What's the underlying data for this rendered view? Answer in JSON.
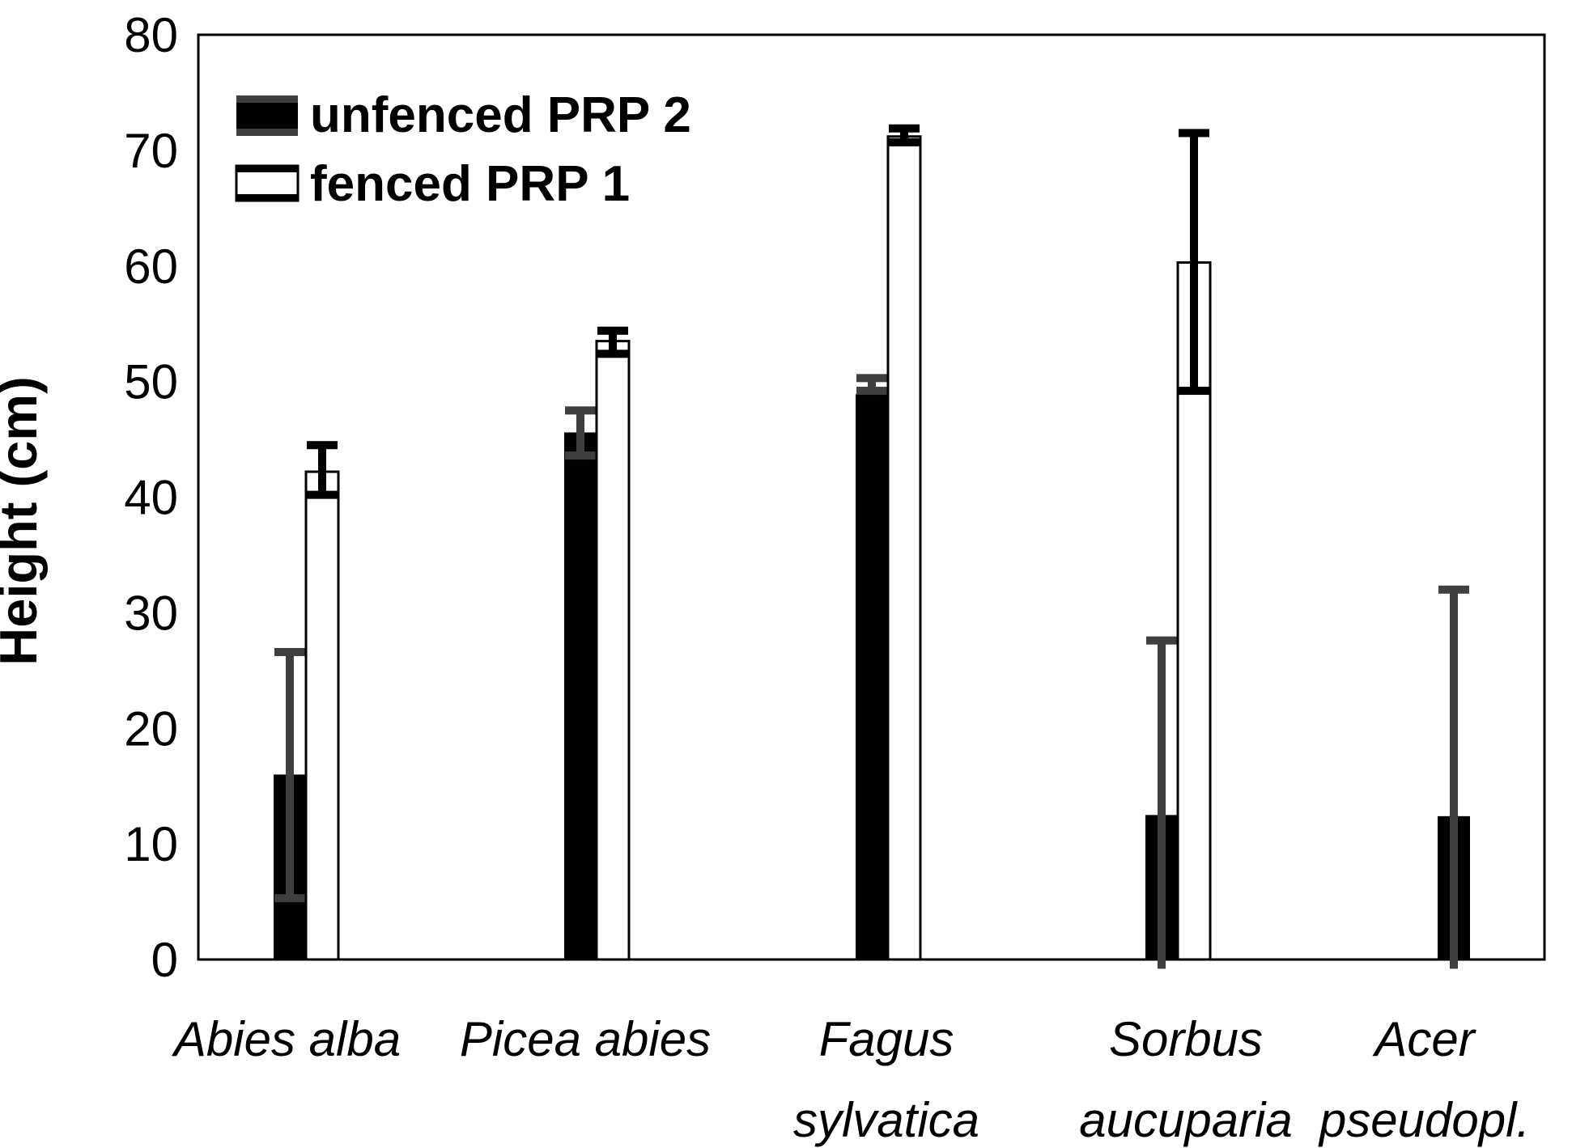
{
  "chart_data": {
    "type": "bar",
    "title": "",
    "xlabel": "",
    "ylabel": "Height (cm)",
    "ylim": [
      0,
      80
    ],
    "ytick_step": 10,
    "ytick_labels": [
      "0",
      "10",
      "20",
      "30",
      "40",
      "50",
      "60",
      "70",
      "80"
    ],
    "grid": false,
    "background_color": "#ffffff",
    "frame_color": "#000000",
    "categories": [
      {
        "lines": [
          "Abies alba"
        ]
      },
      {
        "lines": [
          "Picea abies"
        ]
      },
      {
        "lines": [
          "Fagus",
          "sylvatica"
        ]
      },
      {
        "lines": [
          "Sorbus",
          "aucuparia"
        ]
      },
      {
        "lines": [
          "Acer",
          "pseudopl."
        ]
      }
    ],
    "series": [
      {
        "name": "unfenced PRP 2",
        "fill": "#000000",
        "outline": "#000000",
        "whisker_color": "#3f3f3f",
        "values": [
          16.0,
          45.6,
          48.9,
          12.5,
          12.4
        ],
        "whisker_low": [
          5.3,
          43.6,
          49.2,
          -0.8,
          -0.8
        ],
        "whisker_high": [
          26.6,
          47.5,
          50.3,
          27.6,
          32.0
        ],
        "cap_low": [
          true,
          true,
          true,
          false,
          false
        ]
      },
      {
        "name": "fenced PRP 1",
        "fill": "#ffffff",
        "outline": "#000000",
        "whisker_color": "#000000",
        "values": [
          42.2,
          53.5,
          71.2,
          60.3,
          null
        ],
        "whisker_low": [
          40.2,
          52.4,
          70.7,
          49.2,
          null
        ],
        "whisker_high": [
          44.5,
          54.4,
          71.9,
          71.5,
          null
        ],
        "cap_low": [
          true,
          true,
          true,
          true,
          false
        ]
      }
    ],
    "legend": {
      "position": "top-left"
    }
  }
}
